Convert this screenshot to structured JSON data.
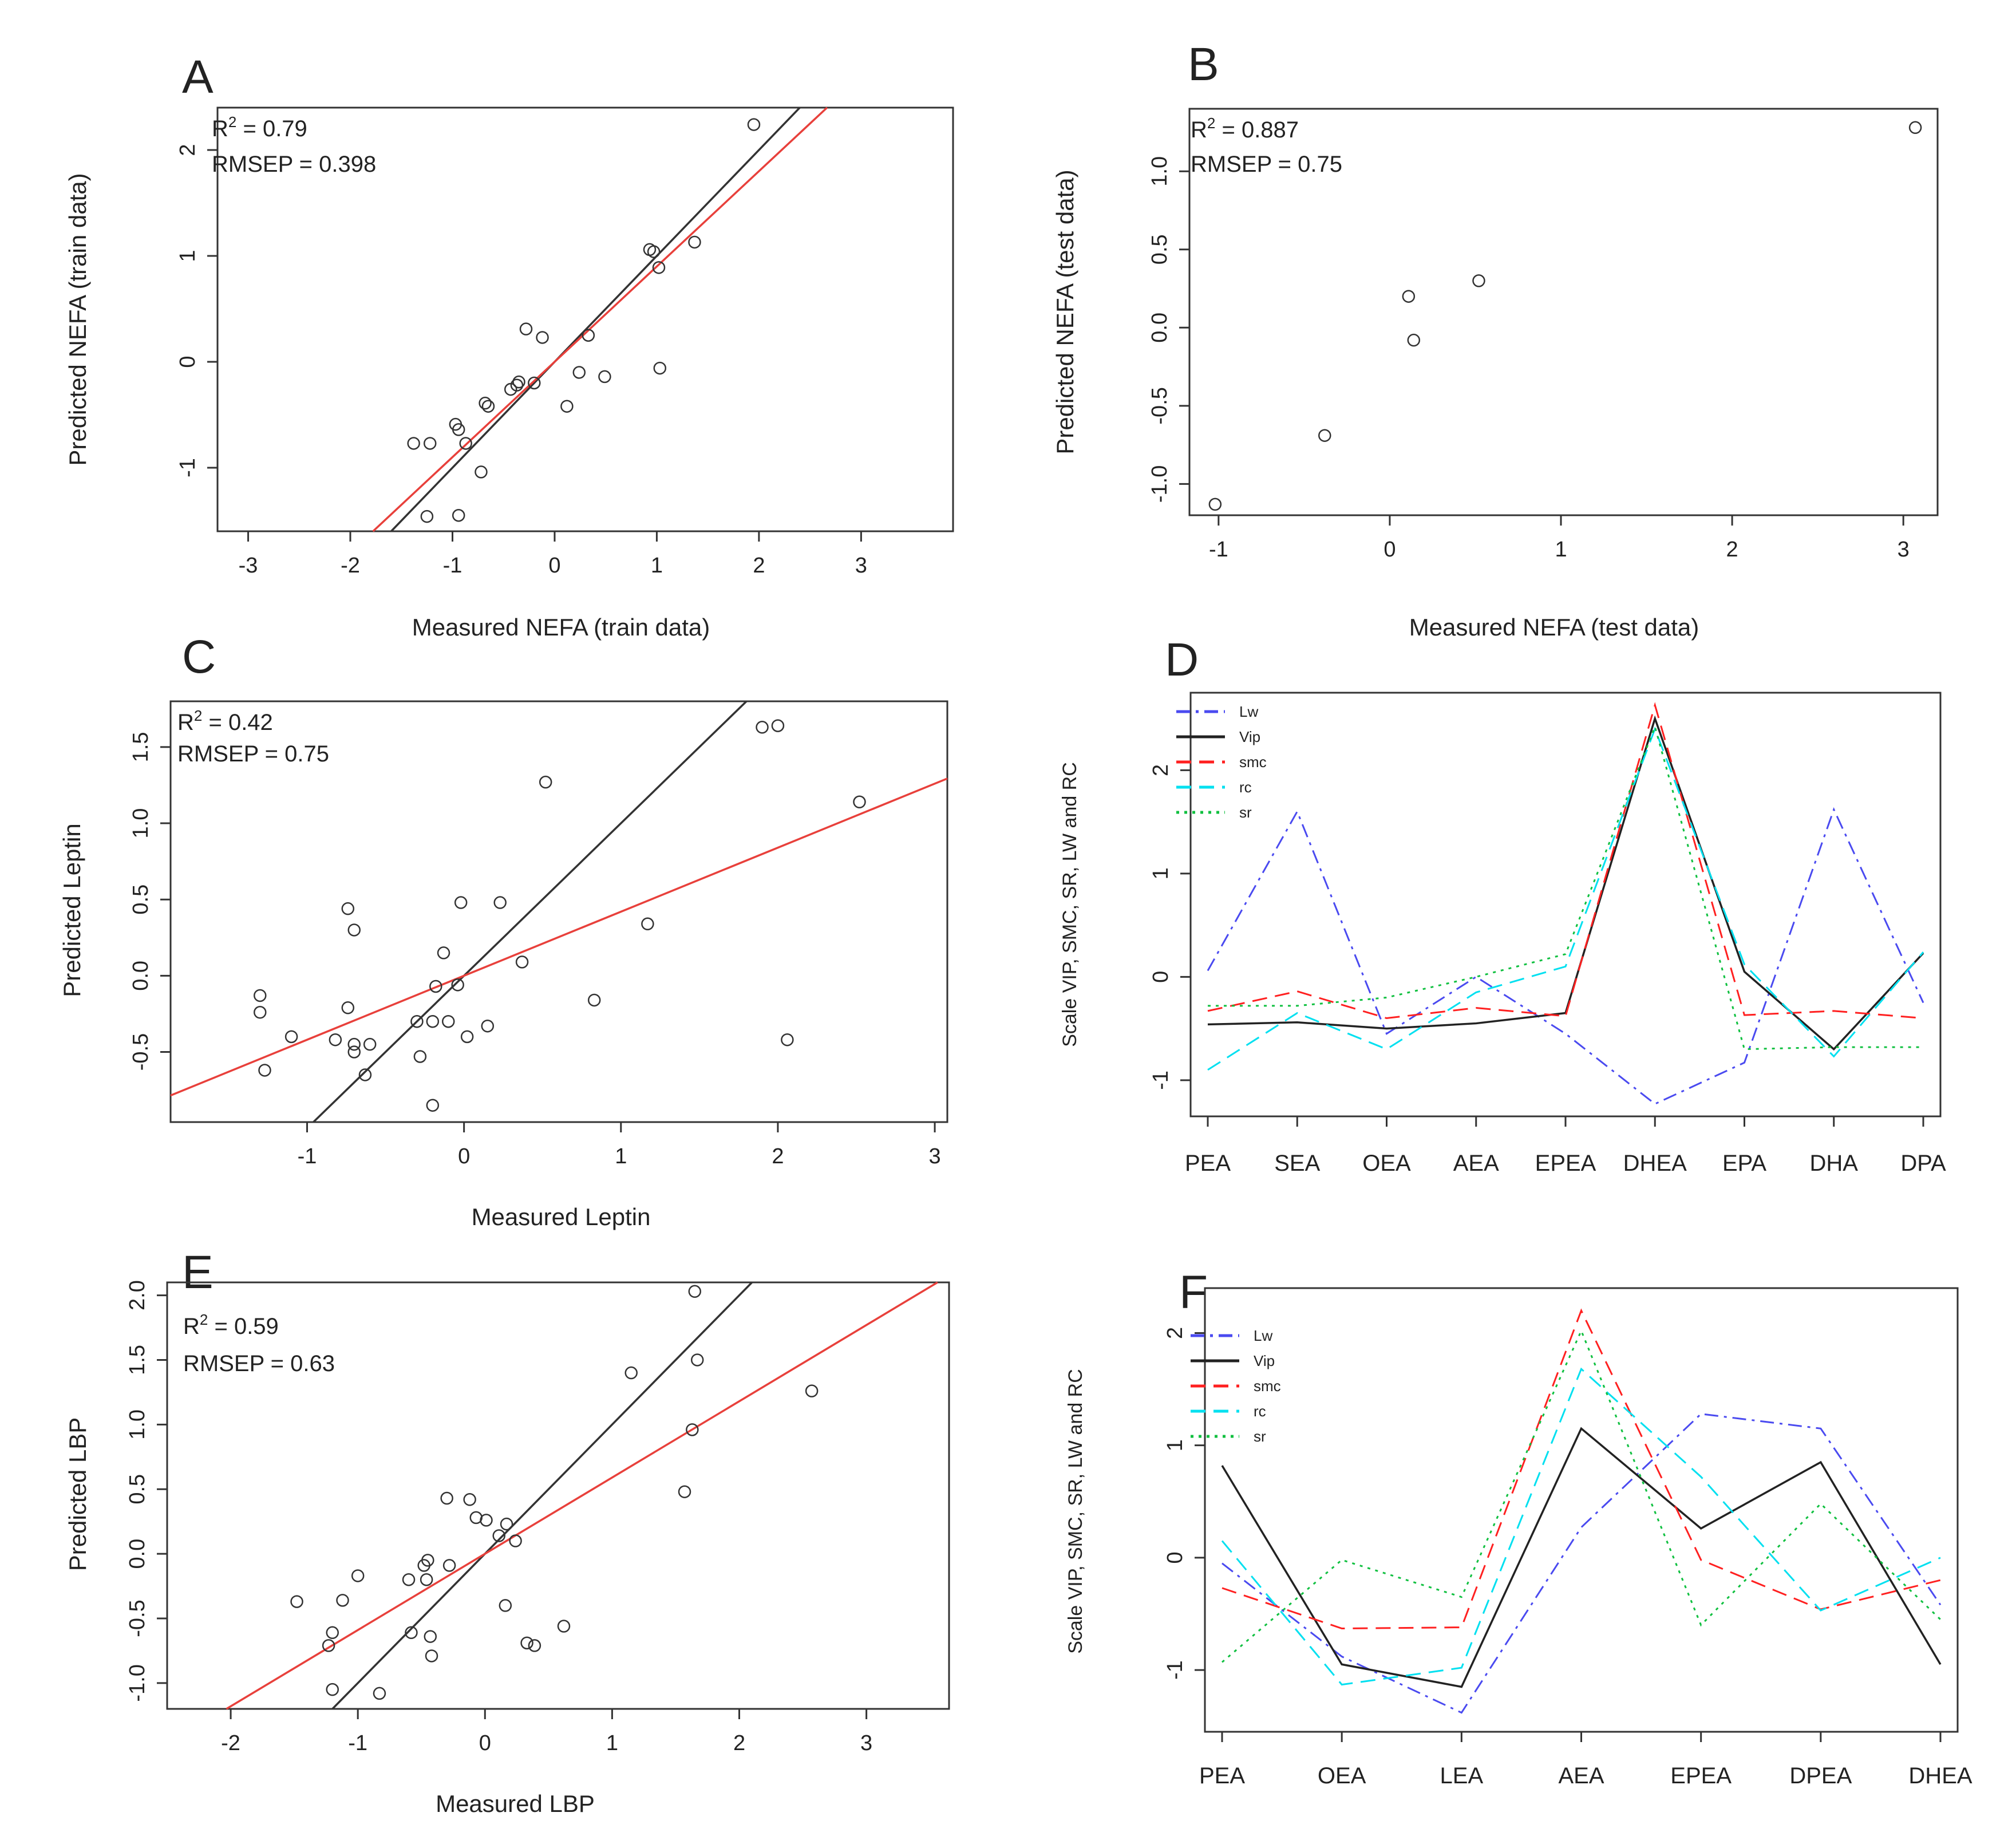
{
  "chart_data": [
    {
      "panel": "A",
      "type": "scatter",
      "xlabel": "Measured NEFA (train data)",
      "ylabel": "Predicted NEFA (train data)",
      "xlim": [
        -3.3,
        3.9
      ],
      "ylim": [
        -1.6,
        2.4
      ],
      "xticks": [
        -3,
        -2,
        -1,
        0,
        1,
        2,
        3
      ],
      "yticks": [
        -1,
        0,
        1,
        2
      ],
      "stats": {
        "r2_prefix": "R",
        "r2_value": "= 0.79",
        "rmsep": "RMSEP = 0.398"
      },
      "points": [
        [
          1.95,
          2.24
        ],
        [
          0.93,
          1.06
        ],
        [
          0.97,
          1.04
        ],
        [
          1.37,
          1.13
        ],
        [
          1.02,
          0.89
        ],
        [
          -0.28,
          0.31
        ],
        [
          -0.12,
          0.23
        ],
        [
          0.33,
          0.25
        ],
        [
          -0.43,
          -0.26
        ],
        [
          -0.37,
          -0.22
        ],
        [
          -0.35,
          -0.19
        ],
        [
          -0.2,
          -0.2
        ],
        [
          -0.68,
          -0.39
        ],
        [
          -0.65,
          -0.42
        ],
        [
          0.12,
          -0.42
        ],
        [
          0.24,
          -0.1
        ],
        [
          0.49,
          -0.14
        ],
        [
          1.03,
          -0.06
        ],
        [
          -0.97,
          -0.59
        ],
        [
          -0.94,
          -0.64
        ],
        [
          -1.38,
          -0.77
        ],
        [
          -1.22,
          -0.77
        ],
        [
          -0.87,
          -0.77
        ],
        [
          -0.72,
          -1.04
        ],
        [
          -1.25,
          -1.46
        ],
        [
          -0.94,
          -1.45
        ]
      ],
      "lines": [
        {
          "name": "identity",
          "color": "#333333",
          "slope": 1.0,
          "intercept": 0.0
        },
        {
          "name": "fit",
          "color": "#e8403b",
          "slope": 0.9,
          "intercept": 0.0
        }
      ]
    },
    {
      "panel": "B",
      "type": "scatter",
      "xlabel": "Measured NEFA (test data)",
      "ylabel": "Predicted NEFA (test data)",
      "xlim": [
        -1.17,
        3.2
      ],
      "ylim": [
        -1.2,
        1.4
      ],
      "xticks": [
        -1,
        0,
        1,
        2,
        3
      ],
      "yticks": [
        -1.0,
        -0.5,
        0.0,
        0.5,
        1.0
      ],
      "tick_labels_y": [
        "-1.0",
        "-0.5",
        "0.0",
        "0.5",
        "1.0"
      ],
      "stats": {
        "r2_prefix": "R",
        "r2_value": "= 0.887",
        "rmsep": "RMSEP = 0.75"
      },
      "points": [
        [
          3.07,
          1.28
        ],
        [
          0.52,
          0.3
        ],
        [
          0.11,
          0.2
        ],
        [
          0.14,
          -0.08
        ],
        [
          -0.38,
          -0.69
        ],
        [
          -1.02,
          -1.13
        ]
      ],
      "lines": []
    },
    {
      "panel": "C",
      "type": "scatter",
      "xlabel": "Measured Leptin",
      "ylabel": "Predicted Leptin",
      "xlim": [
        -1.87,
        3.08
      ],
      "ylim": [
        -0.96,
        1.8
      ],
      "xticks": [
        -1,
        0,
        1,
        2,
        3
      ],
      "yticks": [
        -0.5,
        0.0,
        0.5,
        1.0,
        1.5
      ],
      "tick_labels_y": [
        "-0.5",
        "0.0",
        "0.5",
        "1.0",
        "1.5"
      ],
      "stats": {
        "r2_prefix": "R",
        "r2_value": "= 0.42",
        "rmsep": "RMSEP = 0.75"
      },
      "points": [
        [
          1.9,
          1.63
        ],
        [
          2.0,
          1.64
        ],
        [
          2.52,
          1.14
        ],
        [
          0.52,
          1.27
        ],
        [
          -0.74,
          0.44
        ],
        [
          -0.7,
          0.3
        ],
        [
          -0.02,
          0.48
        ],
        [
          0.23,
          0.48
        ],
        [
          1.17,
          0.34
        ],
        [
          -0.13,
          0.15
        ],
        [
          0.37,
          0.09
        ],
        [
          -0.18,
          -0.07
        ],
        [
          -0.04,
          -0.06
        ],
        [
          -1.3,
          -0.13
        ],
        [
          -1.3,
          -0.24
        ],
        [
          -0.74,
          -0.21
        ],
        [
          0.83,
          -0.16
        ],
        [
          -1.1,
          -0.4
        ],
        [
          -0.82,
          -0.42
        ],
        [
          -0.7,
          -0.45
        ],
        [
          -0.6,
          -0.45
        ],
        [
          -0.7,
          -0.5
        ],
        [
          -0.3,
          -0.3
        ],
        [
          -0.2,
          -0.3
        ],
        [
          -0.1,
          -0.3
        ],
        [
          0.15,
          -0.33
        ],
        [
          0.02,
          -0.4
        ],
        [
          -1.27,
          -0.62
        ],
        [
          -0.63,
          -0.65
        ],
        [
          -0.28,
          -0.53
        ],
        [
          2.06,
          -0.42
        ],
        [
          -0.2,
          -0.85
        ]
      ],
      "lines": [
        {
          "name": "identity",
          "color": "#333333",
          "slope": 1.0,
          "intercept": 0.0
        },
        {
          "name": "fit",
          "color": "#e8403b",
          "slope": 0.42,
          "intercept": 0.0
        }
      ]
    },
    {
      "panel": "D",
      "type": "line",
      "ylabel": "Scale VIP, SMC, SR, LW and RC",
      "categories": [
        "PEA",
        "SEA",
        "OEA",
        "AEA",
        "EPEA",
        "DHEA",
        "EPA",
        "DHA",
        "DPA"
      ],
      "ylim": [
        -1.35,
        2.75
      ],
      "yticks": [
        -1,
        0,
        1,
        2
      ],
      "legend": {
        "position": "top-left",
        "entries": [
          "Lw",
          "Vip",
          "smc",
          "rc",
          "sr"
        ]
      },
      "series": [
        {
          "name": "Lw",
          "color": "#4a4af0",
          "dash": "dashdot",
          "values": [
            0.06,
            1.6,
            -0.55,
            0.0,
            -0.55,
            -1.23,
            -0.83,
            1.62,
            -0.25
          ]
        },
        {
          "name": "Vip",
          "color": "#222222",
          "dash": "solid",
          "values": [
            -0.46,
            -0.44,
            -0.5,
            -0.45,
            -0.35,
            2.5,
            0.05,
            -0.7,
            0.23
          ]
        },
        {
          "name": "smc",
          "color": "#ff2020",
          "dash": "dashed",
          "values": [
            -0.33,
            -0.14,
            -0.4,
            -0.3,
            -0.38,
            2.63,
            -0.37,
            -0.33,
            -0.4
          ]
        },
        {
          "name": "rc",
          "color": "#00e0f0",
          "dash": "dashed",
          "values": [
            -0.9,
            -0.35,
            -0.7,
            -0.15,
            0.1,
            2.4,
            0.12,
            -0.77,
            0.24
          ]
        },
        {
          "name": "sr",
          "color": "#10c040",
          "dash": "dotted",
          "values": [
            -0.28,
            -0.28,
            -0.2,
            0.0,
            0.22,
            2.42,
            -0.7,
            -0.68,
            -0.68
          ]
        }
      ]
    },
    {
      "panel": "E",
      "type": "scatter",
      "xlabel": "Measured LBP",
      "ylabel": "Predicted LBP",
      "xlim": [
        -2.5,
        3.65
      ],
      "ylim": [
        -1.2,
        2.1
      ],
      "xticks": [
        -2,
        -1,
        0,
        1,
        2,
        3
      ],
      "yticks": [
        -1.0,
        -0.5,
        0.0,
        0.5,
        1.0,
        1.5,
        2.0
      ],
      "tick_labels_y": [
        "-1.0",
        "-0.5",
        "0.0",
        "0.5",
        "1.0",
        "1.5",
        "2.0"
      ],
      "stats": {
        "r2_prefix": "R",
        "r2_value": "= 0.59",
        "rmsep": "RMSEP = 0.63"
      },
      "points": [
        [
          1.65,
          2.03
        ],
        [
          1.67,
          1.5
        ],
        [
          1.15,
          1.4
        ],
        [
          2.57,
          1.26
        ],
        [
          1.63,
          0.96
        ],
        [
          1.57,
          0.48
        ],
        [
          -0.3,
          0.43
        ],
        [
          -0.12,
          0.42
        ],
        [
          -0.07,
          0.28
        ],
        [
          0.01,
          0.26
        ],
        [
          0.17,
          0.23
        ],
        [
          0.24,
          0.1
        ],
        [
          0.11,
          0.14
        ],
        [
          -0.45,
          -0.05
        ],
        [
          -0.48,
          -0.09
        ],
        [
          -0.28,
          -0.09
        ],
        [
          -0.6,
          -0.2
        ],
        [
          -0.46,
          -0.2
        ],
        [
          -1.0,
          -0.17
        ],
        [
          -1.48,
          -0.37
        ],
        [
          -1.12,
          -0.36
        ],
        [
          0.16,
          -0.4
        ],
        [
          0.62,
          -0.56
        ],
        [
          -0.58,
          -0.61
        ],
        [
          -0.43,
          -0.64
        ],
        [
          0.33,
          -0.69
        ],
        [
          0.39,
          -0.71
        ],
        [
          -0.42,
          -0.79
        ],
        [
          -1.23,
          -0.71
        ],
        [
          -1.2,
          -0.61
        ],
        [
          -0.83,
          -1.08
        ],
        [
          -1.2,
          -1.05
        ]
      ],
      "lines": [
        {
          "name": "identity",
          "color": "#333333",
          "slope": 1.0,
          "intercept": 0.0
        },
        {
          "name": "fit",
          "color": "#e8403b",
          "slope": 0.59,
          "intercept": 0.0
        }
      ]
    },
    {
      "panel": "F",
      "type": "line",
      "ylabel": "Scale VIP, SMC, SR, LW and RC",
      "categories": [
        "PEA",
        "OEA",
        "LEA",
        "AEA",
        "EPEA",
        "DPEA",
        "DHEA"
      ],
      "ylim": [
        -1.55,
        2.4
      ],
      "yticks": [
        -1,
        0,
        1,
        2
      ],
      "legend": {
        "position": "top-left",
        "entries": [
          "Lw",
          "Vip",
          "smc",
          "rc",
          "sr"
        ]
      },
      "series": [
        {
          "name": "Lw",
          "color": "#4a4af0",
          "dash": "dashdot",
          "values": [
            -0.05,
            -0.88,
            -1.38,
            0.27,
            1.28,
            1.15,
            -0.42
          ]
        },
        {
          "name": "Vip",
          "color": "#222222",
          "dash": "solid",
          "values": [
            0.82,
            -0.95,
            -1.15,
            1.15,
            0.26,
            0.85,
            -0.95
          ]
        },
        {
          "name": "smc",
          "color": "#ff2020",
          "dash": "dashed",
          "values": [
            -0.27,
            -0.63,
            -0.62,
            2.2,
            -0.02,
            -0.46,
            -0.2
          ]
        },
        {
          "name": "rc",
          "color": "#00e0f0",
          "dash": "dashed",
          "values": [
            0.15,
            -1.13,
            -0.98,
            1.68,
            0.72,
            -0.47,
            0.0
          ]
        },
        {
          "name": "sr",
          "color": "#10c040",
          "dash": "dotted",
          "values": [
            -0.93,
            -0.02,
            -0.35,
            2.02,
            -0.6,
            0.48,
            -0.55
          ]
        }
      ]
    }
  ]
}
